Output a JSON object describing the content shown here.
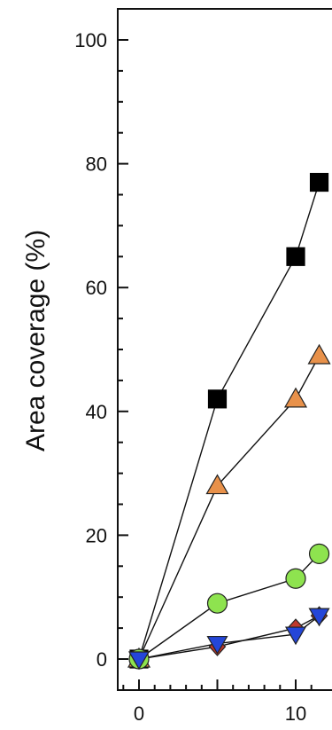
{
  "chart_data": {
    "type": "scatter",
    "title": "",
    "xlabel": "",
    "ylabel": "Area coverage (%)",
    "xlim": [
      -1.5,
      11.5
    ],
    "ylim": [
      -3,
      105
    ],
    "xticks": [
      0,
      10
    ],
    "yticks": [
      0,
      20,
      40,
      60,
      80,
      100
    ],
    "grid": false,
    "legend": "none",
    "series": [
      {
        "marker": "square",
        "color": "#000000",
        "x": [
          0,
          5,
          10,
          11.5
        ],
        "y": [
          0,
          42,
          65,
          77
        ]
      },
      {
        "marker": "triangle-up",
        "color": "#E8914A",
        "x": [
          0,
          5,
          10,
          11.5
        ],
        "y": [
          0,
          28,
          42,
          49
        ]
      },
      {
        "marker": "circle",
        "color": "#8EE34F",
        "x": [
          0,
          5,
          10,
          11.5
        ],
        "y": [
          0,
          9,
          13,
          17
        ]
      },
      {
        "marker": "diamond",
        "color": "#C0392B",
        "x": [
          0,
          5,
          10,
          11.5
        ],
        "y": [
          0,
          2,
          5,
          7
        ]
      },
      {
        "marker": "triangle-down",
        "color": "#2446D8",
        "x": [
          0,
          5,
          10,
          11.5
        ],
        "y": [
          0,
          2.5,
          4,
          7
        ]
      }
    ]
  }
}
